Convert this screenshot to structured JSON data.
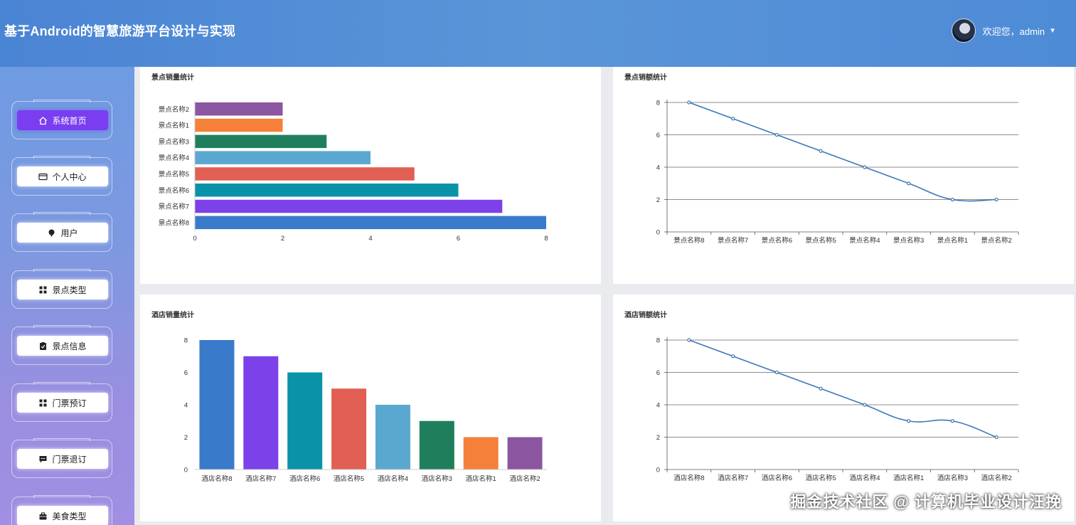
{
  "header": {
    "title": "基于Android的智慧旅游平台设计与实现",
    "user_greeting": "欢迎您，admin",
    "caret": "▼"
  },
  "sidebar": {
    "items": [
      {
        "label": "系统首页",
        "icon": "home-icon",
        "active": true
      },
      {
        "label": "个人中心",
        "icon": "card-icon"
      },
      {
        "label": "用户",
        "icon": "pin-icon"
      },
      {
        "label": "景点类型",
        "icon": "grid-icon"
      },
      {
        "label": "景点信息",
        "icon": "clipboard-icon"
      },
      {
        "label": "门票预订",
        "icon": "grid-icon"
      },
      {
        "label": "门票退订",
        "icon": "chat-icon"
      },
      {
        "label": "美食类型",
        "icon": "briefcase-icon"
      }
    ]
  },
  "panels": {
    "p1_title": "景点销量统计",
    "p2_title": "景点销额统计",
    "p3_title": "酒店销量统计",
    "p4_title": "酒店销额统计"
  },
  "watermark": "掘金技术社区 @ 计算机毕业设计汪挽",
  "chart_data": [
    {
      "type": "bar",
      "orientation": "horizontal",
      "title": "景点销量统计",
      "categories": [
        "景点名称2",
        "景点名称1",
        "景点名称3",
        "景点名称4",
        "景点名称5",
        "景点名称6",
        "景点名称7",
        "景点名称8"
      ],
      "values": [
        2,
        2,
        3,
        4,
        5,
        6,
        7,
        8
      ],
      "colors": [
        "#8c55a0",
        "#f4803a",
        "#1f7f5c",
        "#5aa8cf",
        "#e25f54",
        "#0a93a8",
        "#7c41e8",
        "#3a7acb"
      ],
      "xlim": [
        0,
        8
      ],
      "xticks": [
        0,
        2,
        4,
        6,
        8
      ]
    },
    {
      "type": "line",
      "title": "景点销额统计",
      "categories": [
        "景点名称8",
        "景点名称7",
        "景点名称6",
        "景点名称5",
        "景点名称4",
        "景点名称3",
        "景点名称1",
        "景点名称2"
      ],
      "values": [
        8,
        7,
        6,
        5,
        4,
        3,
        2,
        2
      ],
      "ylim": [
        0,
        8
      ],
      "yticks": [
        0,
        2,
        4,
        6,
        8
      ],
      "grid": true,
      "color": "#3d78b8"
    },
    {
      "type": "bar",
      "orientation": "vertical",
      "title": "酒店销量统计",
      "categories": [
        "酒店名称8",
        "酒店名称7",
        "酒店名称6",
        "酒店名称5",
        "酒店名称4",
        "酒店名称3",
        "酒店名称1",
        "酒店名称2"
      ],
      "values": [
        8,
        7,
        6,
        5,
        4,
        3,
        2,
        2
      ],
      "colors": [
        "#3a7acb",
        "#7c41e8",
        "#0a93a8",
        "#e25f54",
        "#5aa8cf",
        "#1f7f5c",
        "#f4803a",
        "#8c55a0"
      ],
      "ylim": [
        0,
        8
      ],
      "yticks": [
        0,
        2,
        4,
        6,
        8
      ]
    },
    {
      "type": "line",
      "title": "酒店销额统计",
      "categories": [
        "酒店名称8",
        "酒店名称7",
        "酒店名称6",
        "酒店名称5",
        "酒店名称4",
        "酒店名称1",
        "酒店名称3",
        "酒店名称2"
      ],
      "values": [
        8,
        7,
        6,
        5,
        4,
        3,
        3,
        2
      ],
      "ylim": [
        0,
        8
      ],
      "yticks": [
        0,
        2,
        4,
        6,
        8
      ],
      "grid": true,
      "color": "#3d78b8"
    }
  ]
}
